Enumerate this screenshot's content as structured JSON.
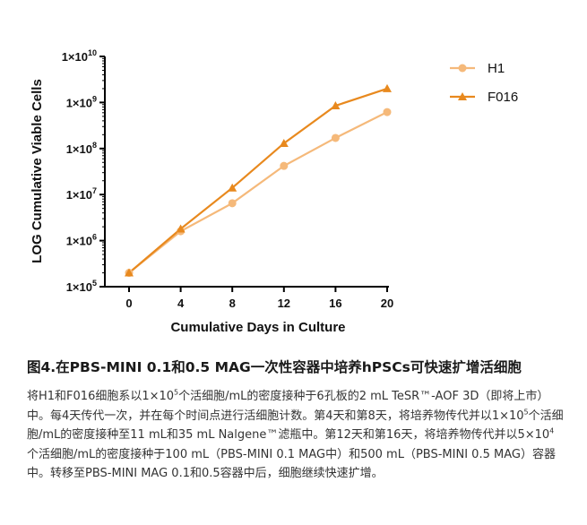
{
  "chart_data": {
    "type": "line",
    "xlabel": "Cumulative Days in Culture",
    "ylabel": "LOG Cumulative Viable Cells",
    "x": [
      0,
      4,
      8,
      12,
      16,
      20
    ],
    "xlim": [
      0,
      20
    ],
    "xticks": [
      "0",
      "4",
      "8",
      "12",
      "16",
      "20"
    ],
    "yscale": "log",
    "ylim": [
      100000,
      10000000000
    ],
    "yticks": [
      {
        "base": "1×10",
        "exp": "5"
      },
      {
        "base": "1×10",
        "exp": "6"
      },
      {
        "base": "1×10",
        "exp": "7"
      },
      {
        "base": "1×10",
        "exp": "8"
      },
      {
        "base": "1×10",
        "exp": "9"
      },
      {
        "base": "1×10",
        "exp": "10"
      }
    ],
    "grid": false,
    "legend_position": "top-right",
    "series": [
      {
        "name": "H1",
        "marker": "circle",
        "color": "#F5B97A",
        "values": [
          200000,
          1600000,
          6500000,
          42000000,
          170000000,
          620000000
        ]
      },
      {
        "name": "F016",
        "marker": "triangle",
        "color": "#E8891E",
        "values": [
          200000,
          1800000,
          14000000,
          130000000,
          850000000,
          2000000000
        ]
      }
    ]
  },
  "caption": {
    "title": "图4.在PBS-MINI 0.1和0.5 MAG一次性容器中培养hPSCs可快速扩增活细胞",
    "p1": "将H1和F016细胞系以1×10",
    "p1_sup": "5",
    "p2": "个活细胞/mL的密度接种于6孔板的2 mL TeSR™-AOF 3D（即将上市）中。每4天传代一次，并在每个时间点进行活细胞计数。第4天和第8天，将培养物传代并以1×10",
    "p2_sup": "5",
    "p3": "个活细胞/mL的密度接种至11 mL和35 mL Nalgene™滤瓶中。第12天和第16天，将培养物传代并以5×10",
    "p3_sup": "4",
    "p4": "个活细胞/mL的密度接种于100 mL（PBS-MINI 0.1 MAG中）和500 mL（PBS-MINI 0.5 MAG）容器中。转移至PBS-MINI MAG 0.1和0.5容器中后，细胞继续快速扩增。"
  }
}
